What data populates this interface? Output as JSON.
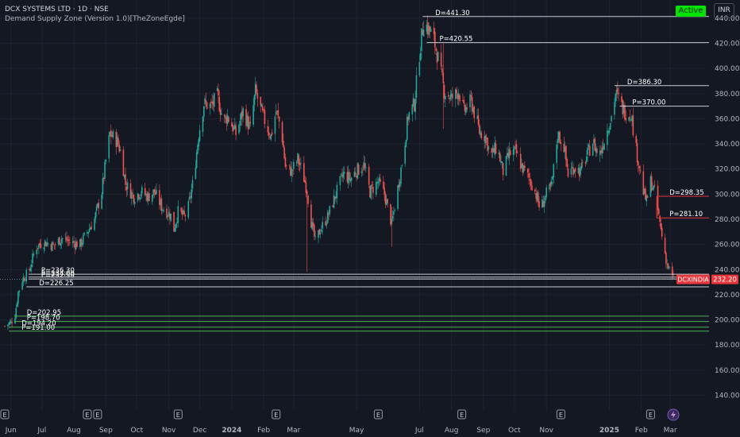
{
  "header": {
    "title": "DCX SYSTEMS LTD · 1D · NSE",
    "indicator": "Demand Supply Zone (Version 1.0)[TheZoneEgde]",
    "active_label": "Active",
    "currency": "INR"
  },
  "colors": {
    "background": "#141823",
    "bull": "#26a69a",
    "bear": "#ef5350",
    "supply_line": "#c9ccd3",
    "resistance_red": "#e8363d",
    "demand_green": "#4caf50",
    "price_tag": "#e8363d"
  },
  "chart_data": {
    "type": "candlestick",
    "symbol": "DCXINDIA",
    "last_price": "232.20",
    "y_ticks": [
      "440.00",
      "420.00",
      "400.00",
      "380.00",
      "360.00",
      "340.00",
      "320.00",
      "300.00",
      "280.00",
      "260.00",
      "240.00",
      "220.00",
      "200.00",
      "180.00",
      "160.00",
      "140.00"
    ],
    "ylim": [
      134,
      450
    ],
    "x_labels": [
      "Jun",
      "Jul",
      "Aug",
      "Sep",
      "Oct",
      "Nov",
      "Dec",
      "2024",
      "Feb",
      "Mar",
      "May",
      "Jul",
      "Aug",
      "Sep",
      "Oct",
      "Nov",
      "2025",
      "Feb",
      "Mar"
    ],
    "x_label_dates": [
      "2023-06-01",
      "2023-07-01",
      "2023-08-01",
      "2023-09-01",
      "2023-10-01",
      "2023-11-01",
      "2023-12-01",
      "2024-01-01",
      "2024-02-01",
      "2024-03-01",
      "2024-05-01",
      "2024-07-01",
      "2024-08-01",
      "2024-09-01",
      "2024-10-01",
      "2024-11-01",
      "2025-01-01",
      "2025-02-01",
      "2025-03-01"
    ],
    "bold_x_labels": [
      "2024",
      "2025"
    ],
    "earnings_markers": [
      "2023-05-26",
      "2023-08-14",
      "2023-08-24",
      "2023-11-10",
      "2024-02-13",
      "2024-05-22",
      "2024-08-11",
      "2024-11-15",
      "2025-02-10"
    ],
    "price_path": [
      [
        "2023-05-26",
        195
      ],
      [
        "2023-06-01",
        198
      ],
      [
        "2023-06-05",
        204
      ],
      [
        "2023-06-08",
        222
      ],
      [
        "2023-06-12",
        232
      ],
      [
        "2023-06-16",
        236
      ],
      [
        "2023-06-19",
        240
      ],
      [
        "2023-06-25",
        258
      ],
      [
        "2023-07-03",
        262
      ],
      [
        "2023-07-12",
        259
      ],
      [
        "2023-07-20",
        265
      ],
      [
        "2023-07-28",
        262
      ],
      [
        "2023-08-07",
        260
      ],
      [
        "2023-08-14",
        270
      ],
      [
        "2023-08-21",
        280
      ],
      [
        "2023-08-28",
        302
      ],
      [
        "2023-09-02",
        333
      ],
      [
        "2023-09-05",
        348
      ],
      [
        "2023-09-12",
        342
      ],
      [
        "2023-09-16",
        332
      ],
      [
        "2023-09-20",
        308
      ],
      [
        "2023-09-28",
        298
      ],
      [
        "2023-10-05",
        302
      ],
      [
        "2023-10-12",
        298
      ],
      [
        "2023-10-18",
        302
      ],
      [
        "2023-10-25",
        290
      ],
      [
        "2023-10-30",
        286
      ],
      [
        "2023-11-03",
        283
      ],
      [
        "2023-11-06",
        272
      ],
      [
        "2023-11-10",
        286
      ],
      [
        "2023-11-16",
        282
      ],
      [
        "2023-11-20",
        290
      ],
      [
        "2023-11-25",
        312
      ],
      [
        "2023-11-30",
        348
      ],
      [
        "2023-12-05",
        372
      ],
      [
        "2023-12-12",
        370
      ],
      [
        "2023-12-18",
        378
      ],
      [
        "2023-12-24",
        358
      ],
      [
        "2023-12-28",
        362
      ],
      [
        "2024-01-05",
        348
      ],
      [
        "2024-01-12",
        366
      ],
      [
        "2024-01-19",
        352
      ],
      [
        "2024-01-24",
        382
      ],
      [
        "2024-01-28",
        370
      ],
      [
        "2024-02-03",
        356
      ],
      [
        "2024-02-08",
        346
      ],
      [
        "2024-02-13",
        366
      ],
      [
        "2024-02-18",
        352
      ],
      [
        "2024-02-22",
        322
      ],
      [
        "2024-02-28",
        318
      ],
      [
        "2024-03-05",
        328
      ],
      [
        "2024-03-10",
        316
      ],
      [
        "2024-03-14",
        303
      ],
      [
        "2024-03-18",
        278
      ],
      [
        "2024-03-22",
        262
      ],
      [
        "2024-03-27",
        272
      ],
      [
        "2024-04-03",
        282
      ],
      [
        "2024-04-10",
        298
      ],
      [
        "2024-04-18",
        316
      ],
      [
        "2024-04-25",
        312
      ],
      [
        "2024-04-30",
        318
      ],
      [
        "2024-05-08",
        323
      ],
      [
        "2024-05-14",
        302
      ],
      [
        "2024-05-22",
        310
      ],
      [
        "2024-05-28",
        300
      ],
      [
        "2024-06-04",
        276
      ],
      [
        "2024-06-10",
        305
      ],
      [
        "2024-06-15",
        330
      ],
      [
        "2024-06-20",
        362
      ],
      [
        "2024-06-26",
        372
      ],
      [
        "2024-07-01",
        412
      ],
      [
        "2024-07-05",
        438
      ],
      [
        "2024-07-09",
        432
      ],
      [
        "2024-07-14",
        426
      ],
      [
        "2024-07-19",
        408
      ],
      [
        "2024-07-25",
        382
      ],
      [
        "2024-08-01",
        376
      ],
      [
        "2024-08-08",
        382
      ],
      [
        "2024-08-13",
        366
      ],
      [
        "2024-08-20",
        374
      ],
      [
        "2024-08-28",
        350
      ],
      [
        "2024-09-03",
        346
      ],
      [
        "2024-09-08",
        330
      ],
      [
        "2024-09-14",
        338
      ],
      [
        "2024-09-20",
        318
      ],
      [
        "2024-09-26",
        332
      ],
      [
        "2024-10-02",
        334
      ],
      [
        "2024-10-08",
        322
      ],
      [
        "2024-10-14",
        314
      ],
      [
        "2024-10-20",
        305
      ],
      [
        "2024-10-26",
        288
      ],
      [
        "2024-11-01",
        300
      ],
      [
        "2024-11-06",
        306
      ],
      [
        "2024-11-12",
        348
      ],
      [
        "2024-11-18",
        338
      ],
      [
        "2024-11-22",
        316
      ],
      [
        "2024-11-28",
        322
      ],
      [
        "2024-12-04",
        318
      ],
      [
        "2024-12-10",
        330
      ],
      [
        "2024-12-16",
        342
      ],
      [
        "2024-12-22",
        330
      ],
      [
        "2024-12-28",
        346
      ],
      [
        "2025-01-03",
        362
      ],
      [
        "2025-01-07",
        380
      ],
      [
        "2025-01-10",
        376
      ],
      [
        "2025-01-14",
        368
      ],
      [
        "2025-01-18",
        364
      ],
      [
        "2025-01-22",
        365
      ],
      [
        "2025-01-26",
        340
      ],
      [
        "2025-01-30",
        322
      ],
      [
        "2025-02-03",
        302
      ],
      [
        "2025-02-06",
        294
      ],
      [
        "2025-02-10",
        310
      ],
      [
        "2025-02-14",
        302
      ],
      [
        "2025-02-18",
        282
      ],
      [
        "2025-02-22",
        262
      ],
      [
        "2025-02-26",
        244
      ],
      [
        "2025-03-01",
        238
      ],
      [
        "2025-03-04",
        232.2
      ]
    ],
    "zones": [
      {
        "label": "D=441.30",
        "value": 441.3,
        "start": "2024-07-04",
        "kind": "supply"
      },
      {
        "label": "P=420.55",
        "value": 420.55,
        "start": "2024-07-08",
        "kind": "supply"
      },
      {
        "label": "D=386.30",
        "value": 386.3,
        "start": "2025-01-06",
        "kind": "supply"
      },
      {
        "label": "P=370.00",
        "value": 370.0,
        "start": "2025-01-11",
        "kind": "supply"
      },
      {
        "label": "D=298.35",
        "value": 298.35,
        "start": "2025-02-16",
        "kind": "resistance"
      },
      {
        "label": "P=281.10",
        "value": 281.1,
        "start": "2025-02-16",
        "kind": "resistance"
      },
      {
        "label": "P=236.30",
        "value": 236.3,
        "start": "2023-06-18",
        "kind": "supply"
      },
      {
        "label": "P=234.00",
        "value": 234.0,
        "start": "2023-06-18",
        "kind": "supply"
      },
      {
        "label": "P=232.50",
        "value": 232.5,
        "start": "2023-06-18",
        "kind": "supply"
      },
      {
        "label": "D=226.25",
        "value": 226.25,
        "start": "2023-06-16",
        "kind": "supply"
      },
      {
        "label": "D=202.95",
        "value": 202.95,
        "start": "2023-06-04",
        "kind": "demand"
      },
      {
        "label": "P=198.70",
        "value": 198.7,
        "start": "2023-06-04",
        "kind": "demand"
      },
      {
        "label": "D=194.20",
        "value": 194.2,
        "start": "2023-05-30",
        "kind": "demand"
      },
      {
        "label": "P=191.00",
        "value": 191.0,
        "start": "2023-05-30",
        "kind": "demand"
      }
    ]
  }
}
